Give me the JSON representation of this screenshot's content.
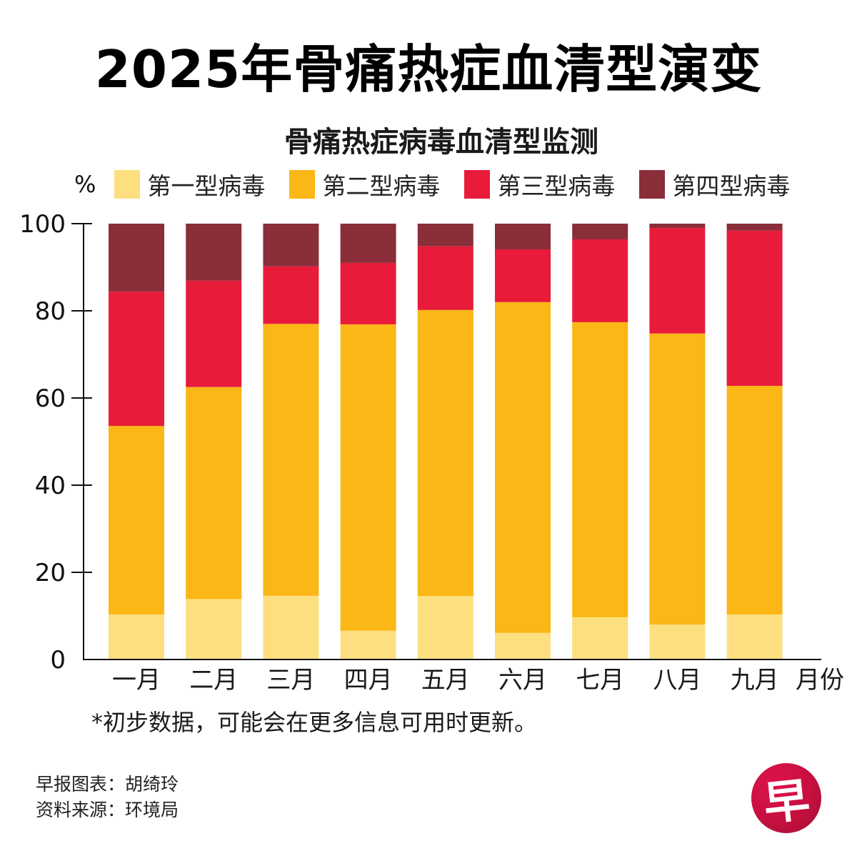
{
  "header": {
    "title": "2025年骨痛热症血清型演变"
  },
  "chart_data": {
    "type": "bar",
    "stacked": true,
    "title": "骨痛热症病毒血清型监测",
    "ylabel": "%",
    "xlabel": "月份",
    "ylim": [
      0,
      100
    ],
    "yticks": [
      0,
      20,
      40,
      60,
      80,
      100
    ],
    "grid": false,
    "legend_position": "top",
    "categories": [
      "一月",
      "二月",
      "三月",
      "四月",
      "五月",
      "六月",
      "七月",
      "八月",
      "九月"
    ],
    "series": [
      {
        "name": "第一型病毒",
        "color": "#FDDF80",
        "values": [
          10.3,
          13.9,
          14.6,
          6.6,
          14.6,
          6.1,
          9.7,
          8.0,
          10.3
        ]
      },
      {
        "name": "第二型病毒",
        "color": "#FAB716",
        "values": [
          43.3,
          48.6,
          62.4,
          70.3,
          65.6,
          75.9,
          67.7,
          66.8,
          52.5
        ]
      },
      {
        "name": "第三型病毒",
        "color": "#E91B3B",
        "values": [
          30.8,
          24.4,
          13.2,
          14.1,
          14.6,
          12.1,
          19.0,
          24.2,
          35.6
        ]
      },
      {
        "name": "第四型病毒",
        "color": "#8A2E39",
        "values": [
          15.6,
          13.1,
          9.8,
          9.0,
          5.2,
          5.9,
          3.6,
          1.0,
          1.6
        ]
      }
    ]
  },
  "footnote": "*初步数据，可能会在更多信息可用时更新。",
  "credits": {
    "chart_by": "早报图表：胡绮玲",
    "source": "资料来源：环境局"
  },
  "logo": {
    "glyph": "早",
    "color": "#C5103F"
  }
}
